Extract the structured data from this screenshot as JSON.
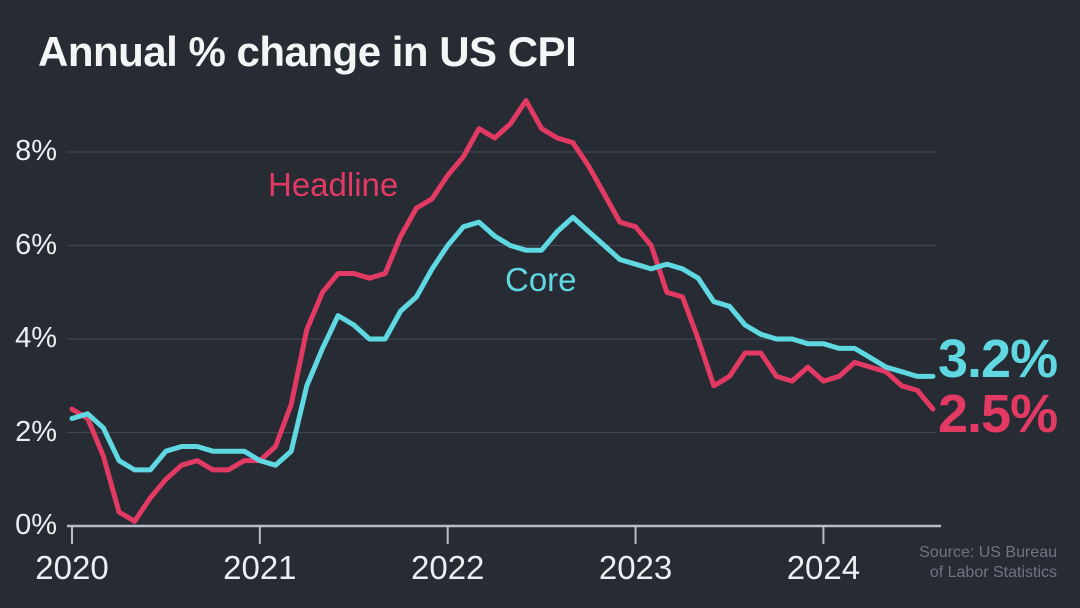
{
  "title": "Annual % change in US CPI",
  "series_labels": {
    "headline": "Headline",
    "core": "Core"
  },
  "end_labels": {
    "core": "3.2%",
    "headline": "2.5%"
  },
  "source": {
    "line1": "Source: US Bureau",
    "line2": "of Labor Statistics"
  },
  "colors": {
    "background": "#262b34",
    "headline_line": "#e23a63",
    "core_line": "#5fd8e1",
    "gridline": "#41474f",
    "axis": "#b9bec6",
    "axis_text": "#eceef1",
    "title_text": "#f4f5f7",
    "source_text": "#6f7682"
  },
  "chart_data": {
    "type": "line",
    "title": "Annual % change in US CPI",
    "xlabel": "",
    "ylabel": "Annual % change",
    "ylim": [
      0,
      9.3
    ],
    "grid": "horizontal",
    "legend_position": "inline-labels",
    "x_unit": "month",
    "x": [
      "2020-01",
      "2020-02",
      "2020-03",
      "2020-04",
      "2020-05",
      "2020-06",
      "2020-07",
      "2020-08",
      "2020-09",
      "2020-10",
      "2020-11",
      "2020-12",
      "2021-01",
      "2021-02",
      "2021-03",
      "2021-04",
      "2021-05",
      "2021-06",
      "2021-07",
      "2021-08",
      "2021-09",
      "2021-10",
      "2021-11",
      "2021-12",
      "2022-01",
      "2022-02",
      "2022-03",
      "2022-04",
      "2022-05",
      "2022-06",
      "2022-07",
      "2022-08",
      "2022-09",
      "2022-10",
      "2022-11",
      "2022-12",
      "2023-01",
      "2023-02",
      "2023-03",
      "2023-04",
      "2023-05",
      "2023-06",
      "2023-07",
      "2023-08",
      "2023-09",
      "2023-10",
      "2023-11",
      "2023-12",
      "2024-01",
      "2024-02",
      "2024-03",
      "2024-04",
      "2024-05",
      "2024-06",
      "2024-07",
      "2024-08"
    ],
    "x_ticks": [
      {
        "label": "2020",
        "index": 0
      },
      {
        "label": "2021",
        "index": 12
      },
      {
        "label": "2022",
        "index": 24
      },
      {
        "label": "2023",
        "index": 36
      },
      {
        "label": "2024",
        "index": 48
      }
    ],
    "y_ticks": [
      {
        "label": "0%",
        "value": 0
      },
      {
        "label": "2%",
        "value": 2
      },
      {
        "label": "4%",
        "value": 4
      },
      {
        "label": "6%",
        "value": 6
      },
      {
        "label": "8%",
        "value": 8
      }
    ],
    "series": [
      {
        "name": "Headline",
        "color": "#e23a63",
        "last_value_label": "2.5%",
        "values": [
          2.5,
          2.3,
          1.5,
          0.3,
          0.1,
          0.6,
          1.0,
          1.3,
          1.4,
          1.2,
          1.2,
          1.4,
          1.4,
          1.7,
          2.6,
          4.2,
          5.0,
          5.4,
          5.4,
          5.3,
          5.4,
          6.2,
          6.8,
          7.0,
          7.5,
          7.9,
          8.5,
          8.3,
          8.6,
          9.1,
          8.5,
          8.3,
          8.2,
          7.7,
          7.1,
          6.5,
          6.4,
          6.0,
          5.0,
          4.9,
          4.0,
          3.0,
          3.2,
          3.7,
          3.7,
          3.2,
          3.1,
          3.4,
          3.1,
          3.2,
          3.5,
          3.4,
          3.3,
          3.0,
          2.9,
          2.5
        ]
      },
      {
        "name": "Core",
        "color": "#5fd8e1",
        "last_value_label": "3.2%",
        "values": [
          2.3,
          2.4,
          2.1,
          1.4,
          1.2,
          1.2,
          1.6,
          1.7,
          1.7,
          1.6,
          1.6,
          1.6,
          1.4,
          1.3,
          1.6,
          3.0,
          3.8,
          4.5,
          4.3,
          4.0,
          4.0,
          4.6,
          4.9,
          5.5,
          6.0,
          6.4,
          6.5,
          6.2,
          6.0,
          5.9,
          5.9,
          6.3,
          6.6,
          6.3,
          6.0,
          5.7,
          5.6,
          5.5,
          5.6,
          5.5,
          5.3,
          4.8,
          4.7,
          4.3,
          4.1,
          4.0,
          4.0,
          3.9,
          3.9,
          3.8,
          3.8,
          3.6,
          3.4,
          3.3,
          3.2,
          3.2
        ]
      }
    ]
  }
}
